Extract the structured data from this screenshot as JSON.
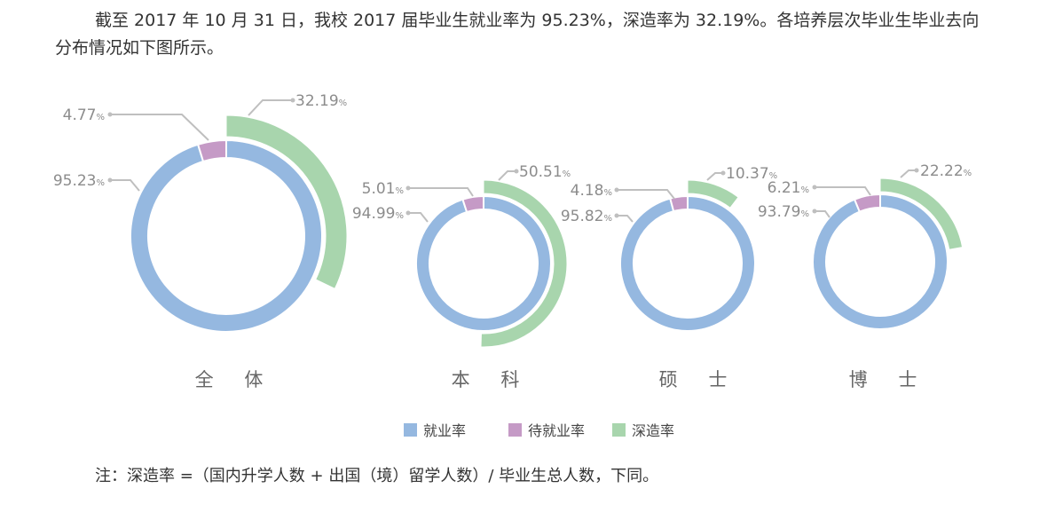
{
  "paragraph": "截至 2017 年 10 月 31 日，我校 2017 届毕业生就业率为 95.23%，深造率为 32.19%。各培养层次毕业生毕业去向分布情况如下图所示。",
  "footnote": "注：深造率 =（国内升学人数 + 出国（境）留学人数）/ 毕业生总人数，下同。",
  "chart_data": {
    "type": "pie",
    "subtype": "donut with outer arc",
    "unit": "%",
    "legend": {
      "position": "bottom",
      "entries": [
        "就业率",
        "待就业率",
        "深造率"
      ]
    },
    "colors": {
      "就业率": "#95b8e0",
      "待就业率": "#c59ac6",
      "深造率": "#a8d5ad"
    },
    "charts": [
      {
        "category": "全 体",
        "employment": 95.23,
        "unemployed": 4.77,
        "further_study": 32.19
      },
      {
        "category": "本 科",
        "employment": 94.99,
        "unemployed": 5.01,
        "further_study": 50.51
      },
      {
        "category": "硕 士",
        "employment": 95.82,
        "unemployed": 4.18,
        "further_study": 10.37
      },
      {
        "category": "博 士",
        "employment": 93.79,
        "unemployed": 6.21,
        "further_study": 22.22
      }
    ],
    "percent_sign": "%"
  }
}
